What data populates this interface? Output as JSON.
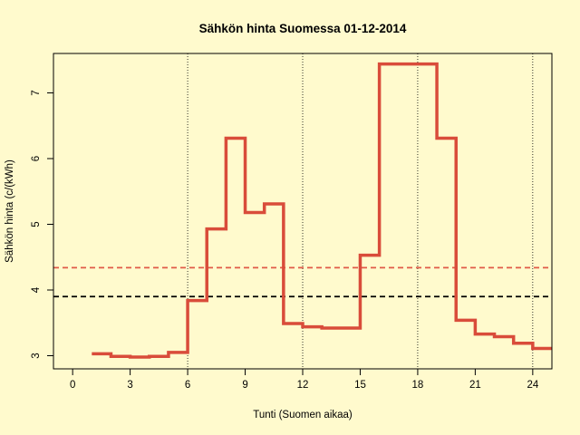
{
  "chart_data": {
    "type": "line",
    "step": true,
    "title": "Sähkön hinta Suomessa 01-12-2014",
    "xlabel": "Tunti (Suomen aikaa)",
    "ylabel": "Sähkön hinta (c/(kWh)",
    "xlim": [
      -1,
      25
    ],
    "ylim": [
      2.8,
      7.6
    ],
    "xticks": [
      0,
      3,
      6,
      9,
      12,
      15,
      18,
      21,
      24
    ],
    "yticks": [
      3,
      4,
      5,
      6,
      7
    ],
    "vlines": [
      6,
      12,
      18,
      24
    ],
    "hlines": [
      {
        "value": 4.34,
        "color": "#e05a48",
        "style": "dashed"
      },
      {
        "value": 3.9,
        "color": "#000000",
        "style": "dashed"
      }
    ],
    "series": [
      {
        "color": "#d94c3a",
        "x": [
          1,
          2,
          3,
          4,
          5,
          6,
          7,
          8,
          9,
          10,
          11,
          12,
          13,
          14,
          15,
          16,
          17,
          18,
          19,
          20,
          21,
          22,
          23,
          24
        ],
        "values": [
          3.03,
          2.99,
          2.98,
          2.99,
          3.05,
          3.84,
          4.93,
          6.31,
          5.18,
          5.31,
          3.49,
          3.44,
          3.42,
          3.42,
          4.53,
          7.44,
          7.44,
          7.44,
          6.31,
          3.54,
          3.33,
          3.29,
          3.19,
          3.11
        ]
      }
    ],
    "background": "#fffacd"
  }
}
